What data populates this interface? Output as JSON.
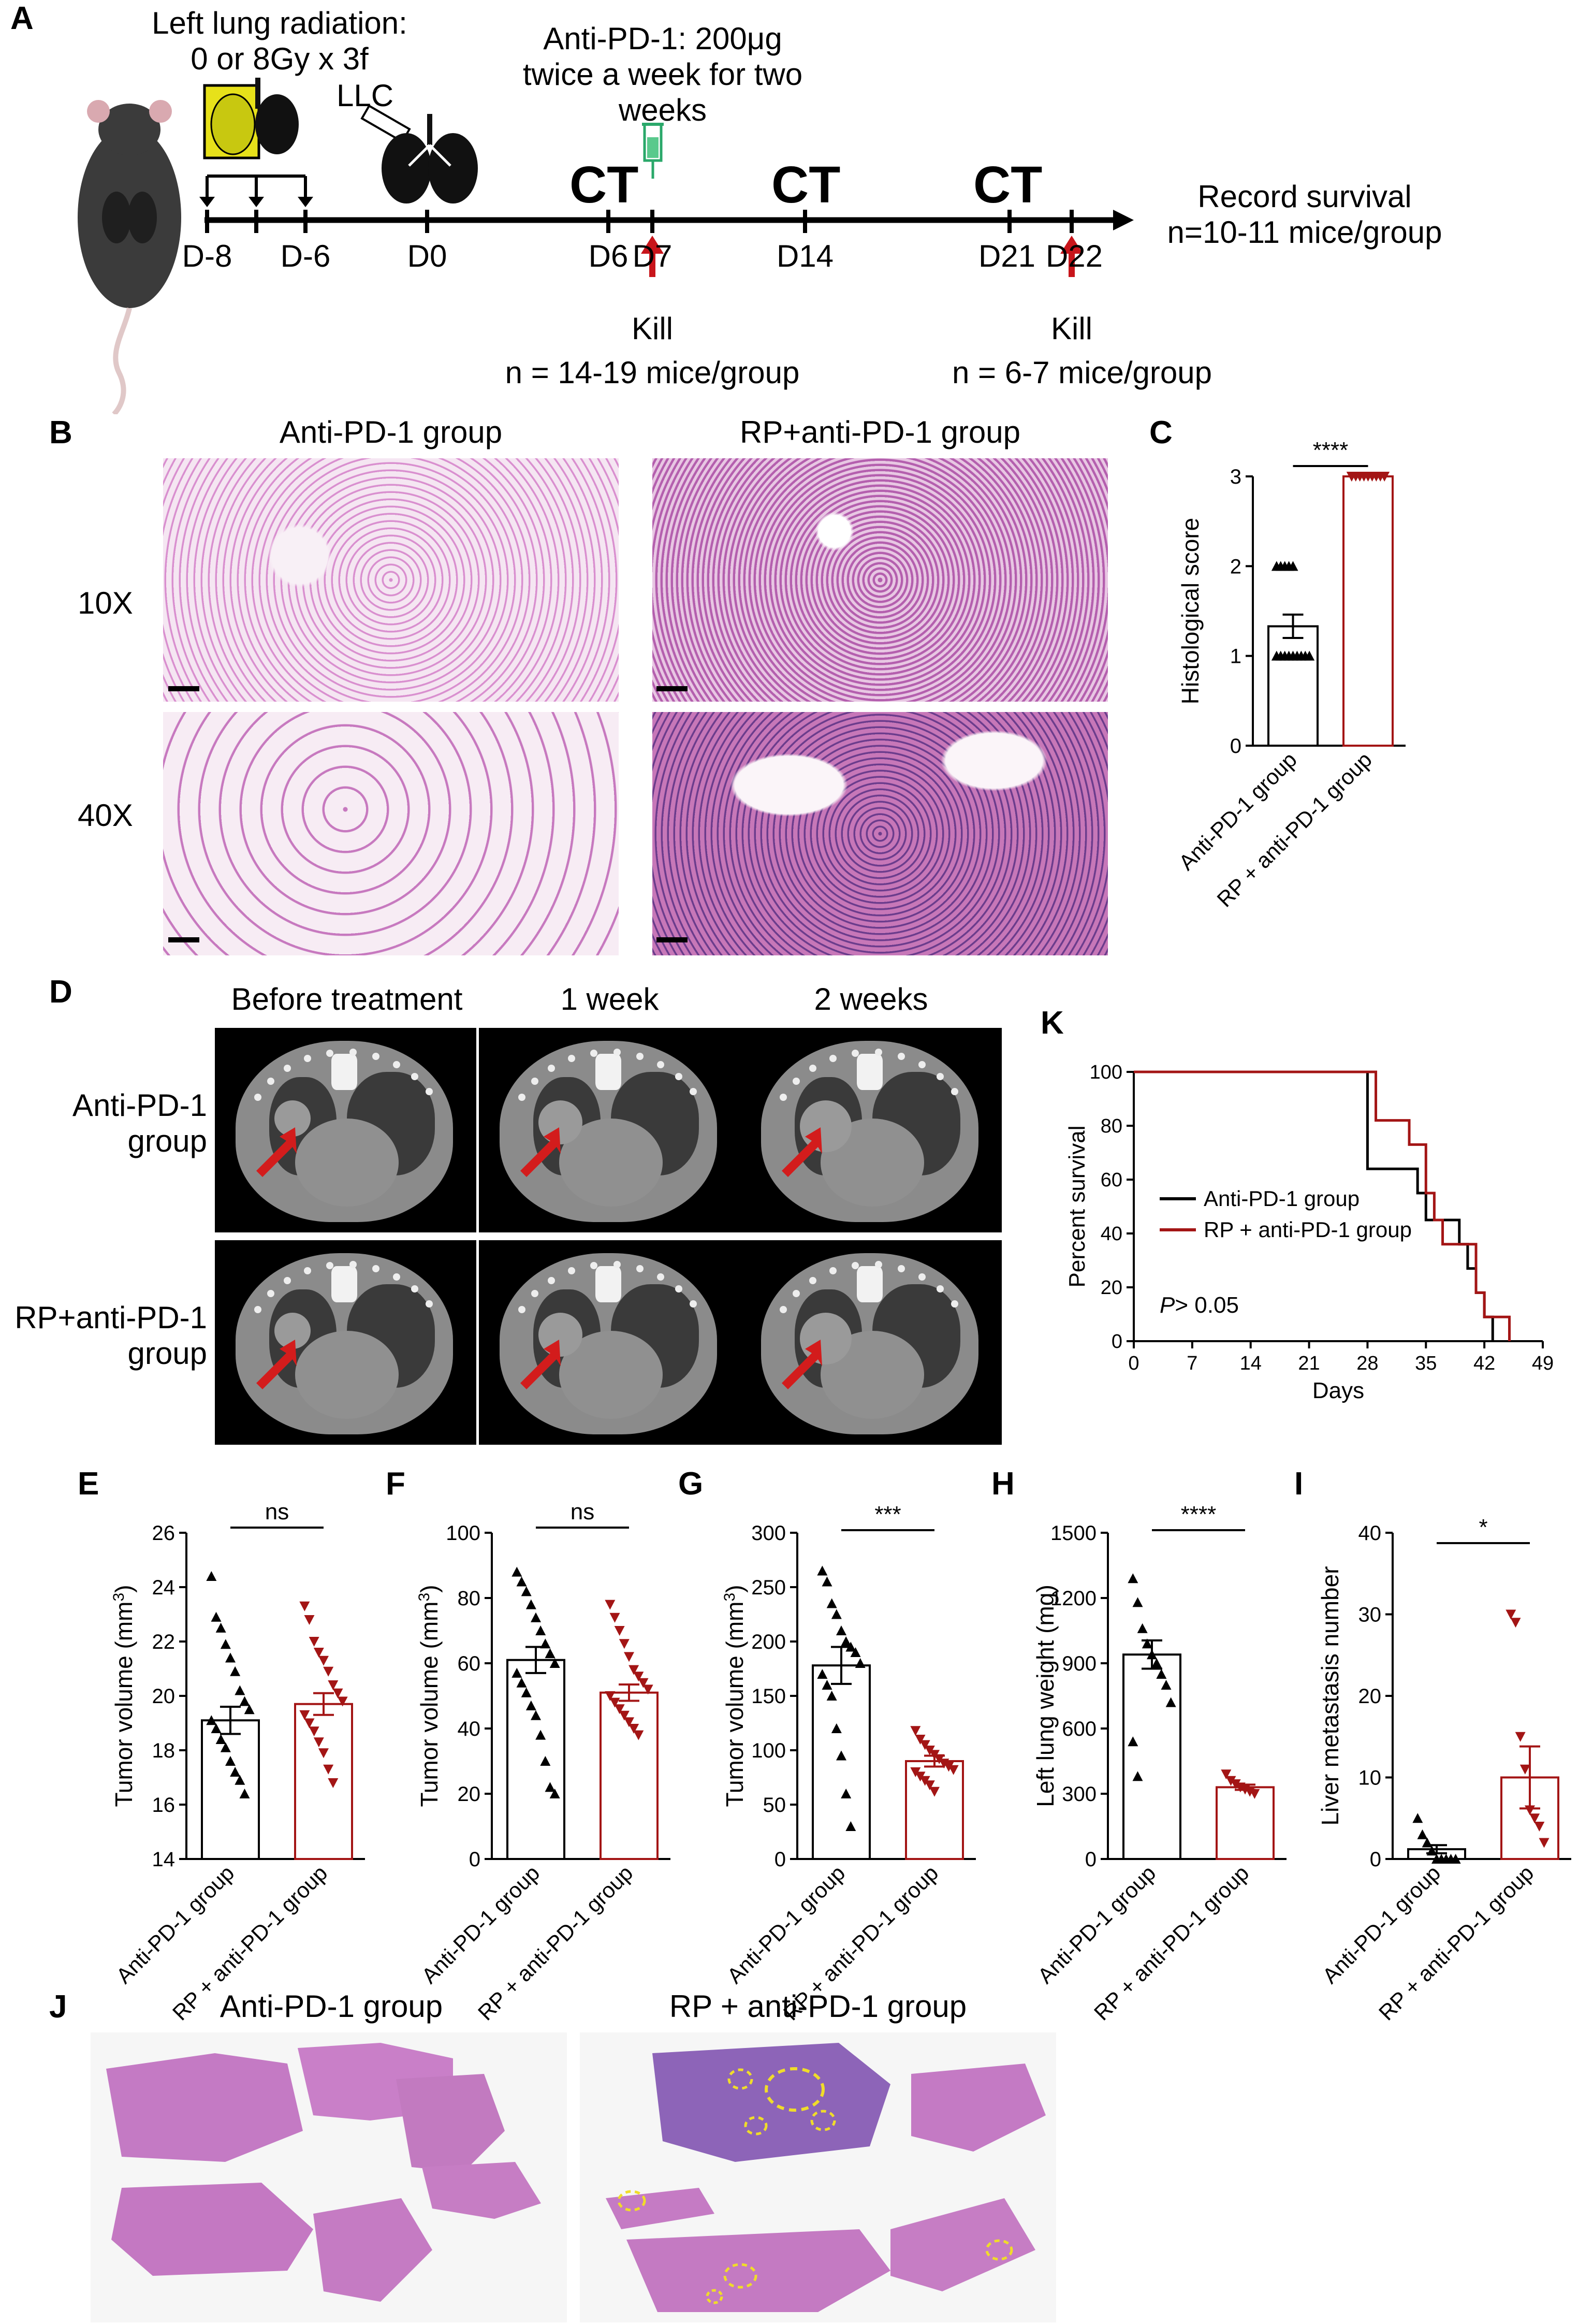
{
  "panels": {
    "A": "A",
    "B": "B",
    "C": "C",
    "D": "D",
    "E": "E",
    "F": "F",
    "G": "G",
    "H": "H",
    "I": "I",
    "J": "J",
    "K": "K"
  },
  "timeline": {
    "radiation_line1": "Left lung radiation:",
    "radiation_line2": "0 or 8Gy x 3f",
    "llc": "LLC",
    "antipd1_line1": "Anti-PD-1: 200μg",
    "antipd1_line2": "twice a week for two",
    "antipd1_line3": "weeks",
    "ct": "CT",
    "days": [
      "D-8",
      "D-6",
      "D0",
      "D6",
      "D7",
      "D14",
      "D21",
      "D22"
    ],
    "kill": "Kill",
    "kill_n1": "n = 14-19 mice/group",
    "kill_n2": "n = 6-7 mice/group",
    "record_line1": "Record survival",
    "record_line2": "n=10-11 mice/group"
  },
  "histology": {
    "col1": "Anti-PD-1 group",
    "col2": "RP+anti-PD-1 group",
    "row1": "10X",
    "row2": "40X"
  },
  "ct_panel": {
    "col1": "Before treatment",
    "col2": "1 week",
    "col3": "2 weeks",
    "row1_line1": "Anti-PD-1",
    "row1_line2": "group",
    "row2_line1": "RP+anti-PD-1",
    "row2_line2": "group"
  },
  "liver": {
    "col1": "Anti-PD-1 group",
    "col2": "RP + anti-PD-1 group"
  },
  "colors": {
    "control": "#000000",
    "rp": "#a31515",
    "histo_bg": "#f3e9f1",
    "tissue": "#c77fc0"
  },
  "chart_data": [
    {
      "id": "C",
      "type": "bar",
      "categories": [
        "Anti-PD-1  group",
        "RP + anti-PD-1 group"
      ],
      "values": [
        1.33,
        3.0
      ],
      "sem": [
        0.13,
        0
      ],
      "points": [
        [
          1,
          1,
          1,
          1,
          1,
          1,
          1,
          1,
          1,
          2,
          2,
          2,
          2,
          2
        ],
        [
          3,
          3,
          3,
          3,
          3,
          3,
          3,
          3,
          3,
          3
        ]
      ],
      "ylabel": "Histological score",
      "ylim": [
        0,
        3
      ],
      "yticks": [
        0,
        1,
        2,
        3
      ],
      "significance": "****"
    },
    {
      "id": "E",
      "type": "bar",
      "categories": [
        "Anti-PD-1 group",
        "RP + anti-PD-1 group"
      ],
      "values": [
        19.1,
        19.7
      ],
      "sem": [
        0.5,
        0.4
      ],
      "points": [
        [
          24.4,
          22.9,
          22.5,
          21.9,
          21.4,
          20.9,
          20.2,
          19.8,
          19.5,
          19.1,
          18.8,
          18.4,
          18.1,
          17.6,
          17.2,
          16.9,
          16.4
        ],
        [
          23.3,
          22.8,
          22.0,
          21.6,
          21.3,
          20.9,
          20.4,
          20.1,
          19.8,
          19.3,
          19.0,
          18.7,
          18.3,
          17.9,
          17.3,
          16.8
        ]
      ],
      "ylabel": "Tumor volume (mm³)",
      "ylim": [
        14,
        26
      ],
      "yticks": [
        14,
        16,
        18,
        20,
        22,
        24,
        26
      ],
      "significance": "ns"
    },
    {
      "id": "F",
      "type": "bar",
      "categories": [
        "Anti-PD-1 group",
        "RP + anti-PD-1 group"
      ],
      "values": [
        61,
        51
      ],
      "sem": [
        4,
        2.5
      ],
      "points": [
        [
          88,
          85,
          82,
          78,
          74,
          70,
          66,
          63,
          60,
          57,
          54,
          51,
          47,
          44,
          38,
          30,
          22,
          20
        ],
        [
          78,
          74,
          70,
          66,
          62,
          58,
          56,
          54,
          52,
          50,
          48,
          46,
          44,
          42,
          40,
          38
        ]
      ],
      "ylabel": "Tumor volume (mm³)",
      "ylim": [
        0,
        100
      ],
      "yticks": [
        0,
        20,
        40,
        60,
        80,
        100
      ],
      "significance": "ns"
    },
    {
      "id": "G",
      "type": "bar",
      "categories": [
        "Anti-PD-1 group",
        "RP + anti-PD-1 group"
      ],
      "values": [
        178,
        90
      ],
      "sem": [
        17,
        5
      ],
      "points": [
        [
          265,
          255,
          235,
          225,
          210,
          200,
          195,
          190,
          180,
          170,
          160,
          150,
          120,
          95,
          60,
          30
        ],
        [
          118,
          110,
          105,
          100,
          96,
          92,
          88,
          85,
          82,
          80,
          76,
          72,
          68,
          62
        ]
      ],
      "ylabel": "Tumor volume (mm³)",
      "ylim": [
        0,
        300
      ],
      "yticks": [
        0,
        50,
        100,
        150,
        200,
        250,
        300
      ],
      "significance": "***"
    },
    {
      "id": "H",
      "type": "bar",
      "categories": [
        "Anti-PD-1 group",
        "RP + anti-PD-1 group"
      ],
      "values": [
        940,
        330
      ],
      "sem": [
        65,
        12
      ],
      "points": [
        [
          1290,
          1180,
          1060,
          990,
          940,
          900,
          850,
          800,
          720,
          540,
          380
        ],
        [
          390,
          360,
          345,
          330,
          320,
          310,
          300
        ]
      ],
      "ylabel": "Left lung weight (mg)",
      "ylim": [
        0,
        1500
      ],
      "yticks": [
        0,
        300,
        600,
        900,
        1200,
        1500
      ],
      "significance": "****"
    },
    {
      "id": "I",
      "type": "bar",
      "categories": [
        "Anti-PD-1 group",
        "RP + anti-PD-1 group"
      ],
      "values": [
        1.2,
        10
      ],
      "sem": [
        0.5,
        3.8
      ],
      "points": [
        [
          5,
          3,
          2,
          1,
          0,
          0,
          0,
          0,
          0
        ],
        [
          30,
          29,
          15,
          11,
          6,
          5,
          4,
          2
        ]
      ],
      "ylabel": "Liver metastasis number",
      "ylim": [
        0,
        40
      ],
      "yticks": [
        0,
        10,
        20,
        30,
        40
      ],
      "significance": "*"
    },
    {
      "id": "K",
      "type": "line",
      "series": [
        {
          "name": "Anti-PD-1 group",
          "x": [
            0,
            27,
            28,
            33,
            34,
            35,
            38,
            39,
            40,
            41,
            42,
            43
          ],
          "y": [
            100,
            100,
            64,
            64,
            55,
            45,
            45,
            36,
            27,
            18,
            9,
            0
          ]
        },
        {
          "name": "RP + anti-PD-1 group",
          "x": [
            0,
            27,
            29,
            33,
            35,
            36,
            37,
            40,
            41,
            42,
            44,
            45
          ],
          "y": [
            100,
            100,
            82,
            73,
            55,
            45,
            36,
            36,
            18,
            9,
            9,
            0
          ]
        }
      ],
      "xlabel": "Days",
      "ylabel": "Percent survival",
      "xlim": [
        0,
        49
      ],
      "ylim": [
        0,
        100
      ],
      "xticks": [
        0,
        7,
        14,
        21,
        28,
        35,
        42,
        49
      ],
      "yticks": [
        0,
        20,
        40,
        60,
        80,
        100
      ],
      "annotation": "P> 0.05"
    }
  ]
}
